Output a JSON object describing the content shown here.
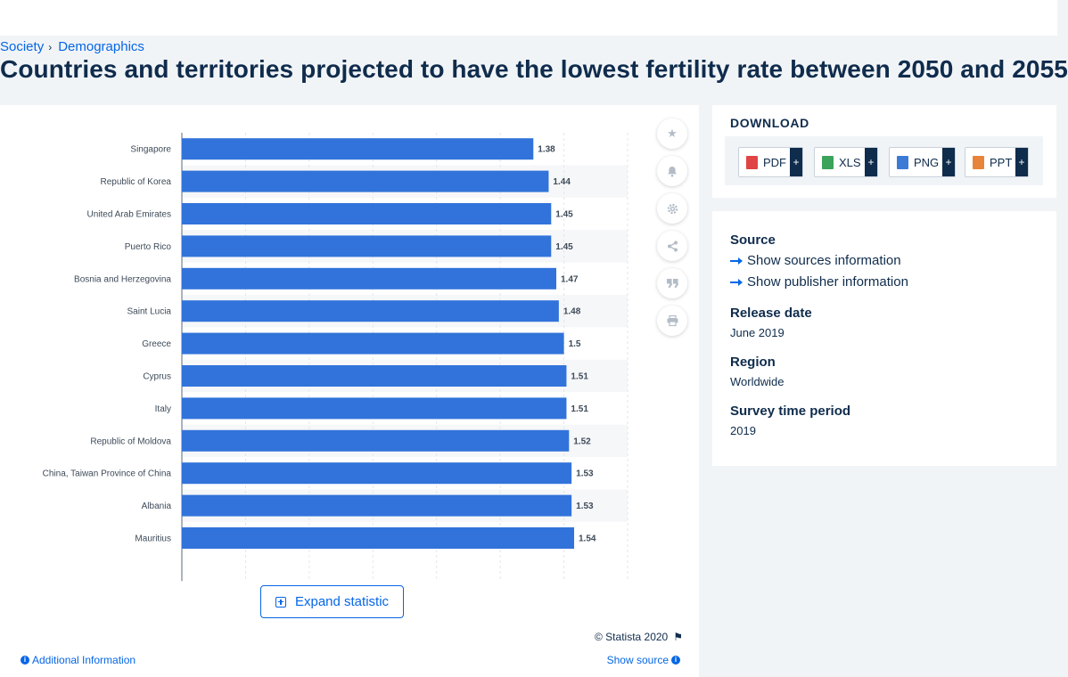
{
  "breadcrumb": {
    "items": [
      "Society",
      "Demographics"
    ],
    "separator": "›"
  },
  "page_title": "Countries and territories projected to have the lowest fertility rate between 2050 and 2055",
  "chart_data": {
    "type": "bar",
    "orientation": "horizontal",
    "categories": [
      "Singapore",
      "Republic of Korea",
      "United Arab Emirates",
      "Puerto Rico",
      "Bosnia and Herzegovina",
      "Saint Lucia",
      "Greece",
      "Cyprus",
      "Italy",
      "Republic of Moldova",
      "China, Taiwan Province of China",
      "Albania",
      "Mauritius"
    ],
    "values": [
      1.38,
      1.44,
      1.45,
      1.45,
      1.47,
      1.48,
      1.5,
      1.51,
      1.51,
      1.52,
      1.53,
      1.53,
      1.54
    ],
    "value_labels": [
      "1.38",
      "1.44",
      "1.45",
      "1.45",
      "1.47",
      "1.48",
      "1.5",
      "1.51",
      "1.51",
      "1.52",
      "1.53",
      "1.53",
      "1.54"
    ],
    "xlim": [
      0,
      1.75
    ],
    "grid": true,
    "bar_color": "#3173da",
    "title": "",
    "xlabel": "",
    "ylabel": ""
  },
  "tools": {
    "icons": [
      "star-icon",
      "bell-icon",
      "gear-icon",
      "share-icon",
      "quote-icon",
      "print-icon"
    ]
  },
  "expand_label": "Expand statistic",
  "copyright": "© Statista 2020",
  "additional_info": "Additional Information",
  "show_source": "Show source",
  "download": {
    "title": "DOWNLOAD",
    "buttons": [
      {
        "label": "PDF",
        "color": "#e04444"
      },
      {
        "label": "XLS",
        "color": "#3ba35a"
      },
      {
        "label": "PNG",
        "color": "#3b7bd6"
      },
      {
        "label": "PPT",
        "color": "#e8833a"
      }
    ],
    "plus": "+"
  },
  "info": {
    "source_label": "Source",
    "show_sources": "Show sources information",
    "show_publisher": "Show publisher information",
    "release_date_label": "Release date",
    "release_date": "June 2019",
    "region_label": "Region",
    "region": "Worldwide",
    "survey_period_label": "Survey time period",
    "survey_period": "2019"
  }
}
